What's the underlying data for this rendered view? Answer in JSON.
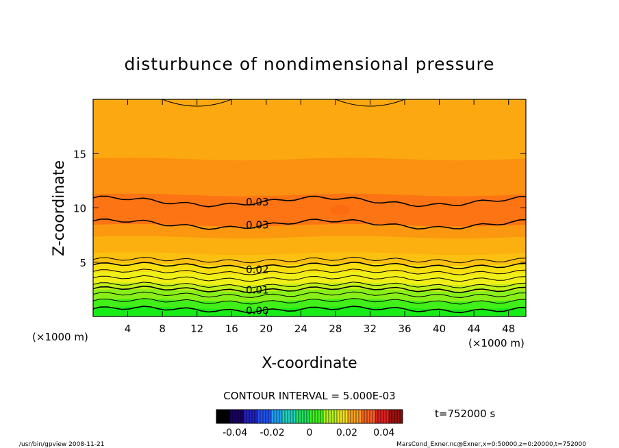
{
  "chart_data": {
    "type": "contour",
    "title": "disturbunce of nondimensional pressure",
    "xlabel": "X-coordinate",
    "ylabel": "Z-coordinate",
    "x_unit": "(×1000 m)",
    "y_unit": "(×1000 m)",
    "xlim": [
      0,
      50
    ],
    "ylim": [
      0,
      20
    ],
    "x_ticks": [
      "4",
      "8",
      "12",
      "16",
      "20",
      "24",
      "28",
      "32",
      "36",
      "40",
      "44",
      "48"
    ],
    "y_ticks": [
      "5",
      "10",
      "15"
    ],
    "contour_interval": "CONTOUR INTERVAL = 5.000E-03",
    "contour_labels": [
      {
        "text": "0.03",
        "x": 17,
        "z": 10.6
      },
      {
        "text": "0.03",
        "x": 17,
        "z": 8.5
      },
      {
        "text": "0.02",
        "x": 17,
        "z": 4.4
      },
      {
        "text": "0.01",
        "x": 17,
        "z": 2.5
      },
      {
        "text": "0.00",
        "x": 17,
        "z": 0.6
      }
    ],
    "colorbar": {
      "ticks": [
        "-0.04",
        "-0.02",
        "0",
        "0.02",
        "0.04"
      ],
      "range": [
        -0.05,
        0.05
      ]
    },
    "time_label": "t=752000 s"
  },
  "footer": {
    "left": "/usr/bin/gpview   2008-11-21",
    "right": "MarsCond_Exner.nc@Exner,x=0:50000,z=0:20000,t=752000"
  },
  "colors": {
    "bands": [
      "#18e818",
      "#30ec18",
      "#58f018",
      "#90f418",
      "#c8f018",
      "#f0f018",
      "#f8d810",
      "#fcc010",
      "#fca810",
      "#fc9010",
      "#fc7810",
      "#fc6810"
    ],
    "background": "#ffffff",
    "contour": "#000000"
  }
}
